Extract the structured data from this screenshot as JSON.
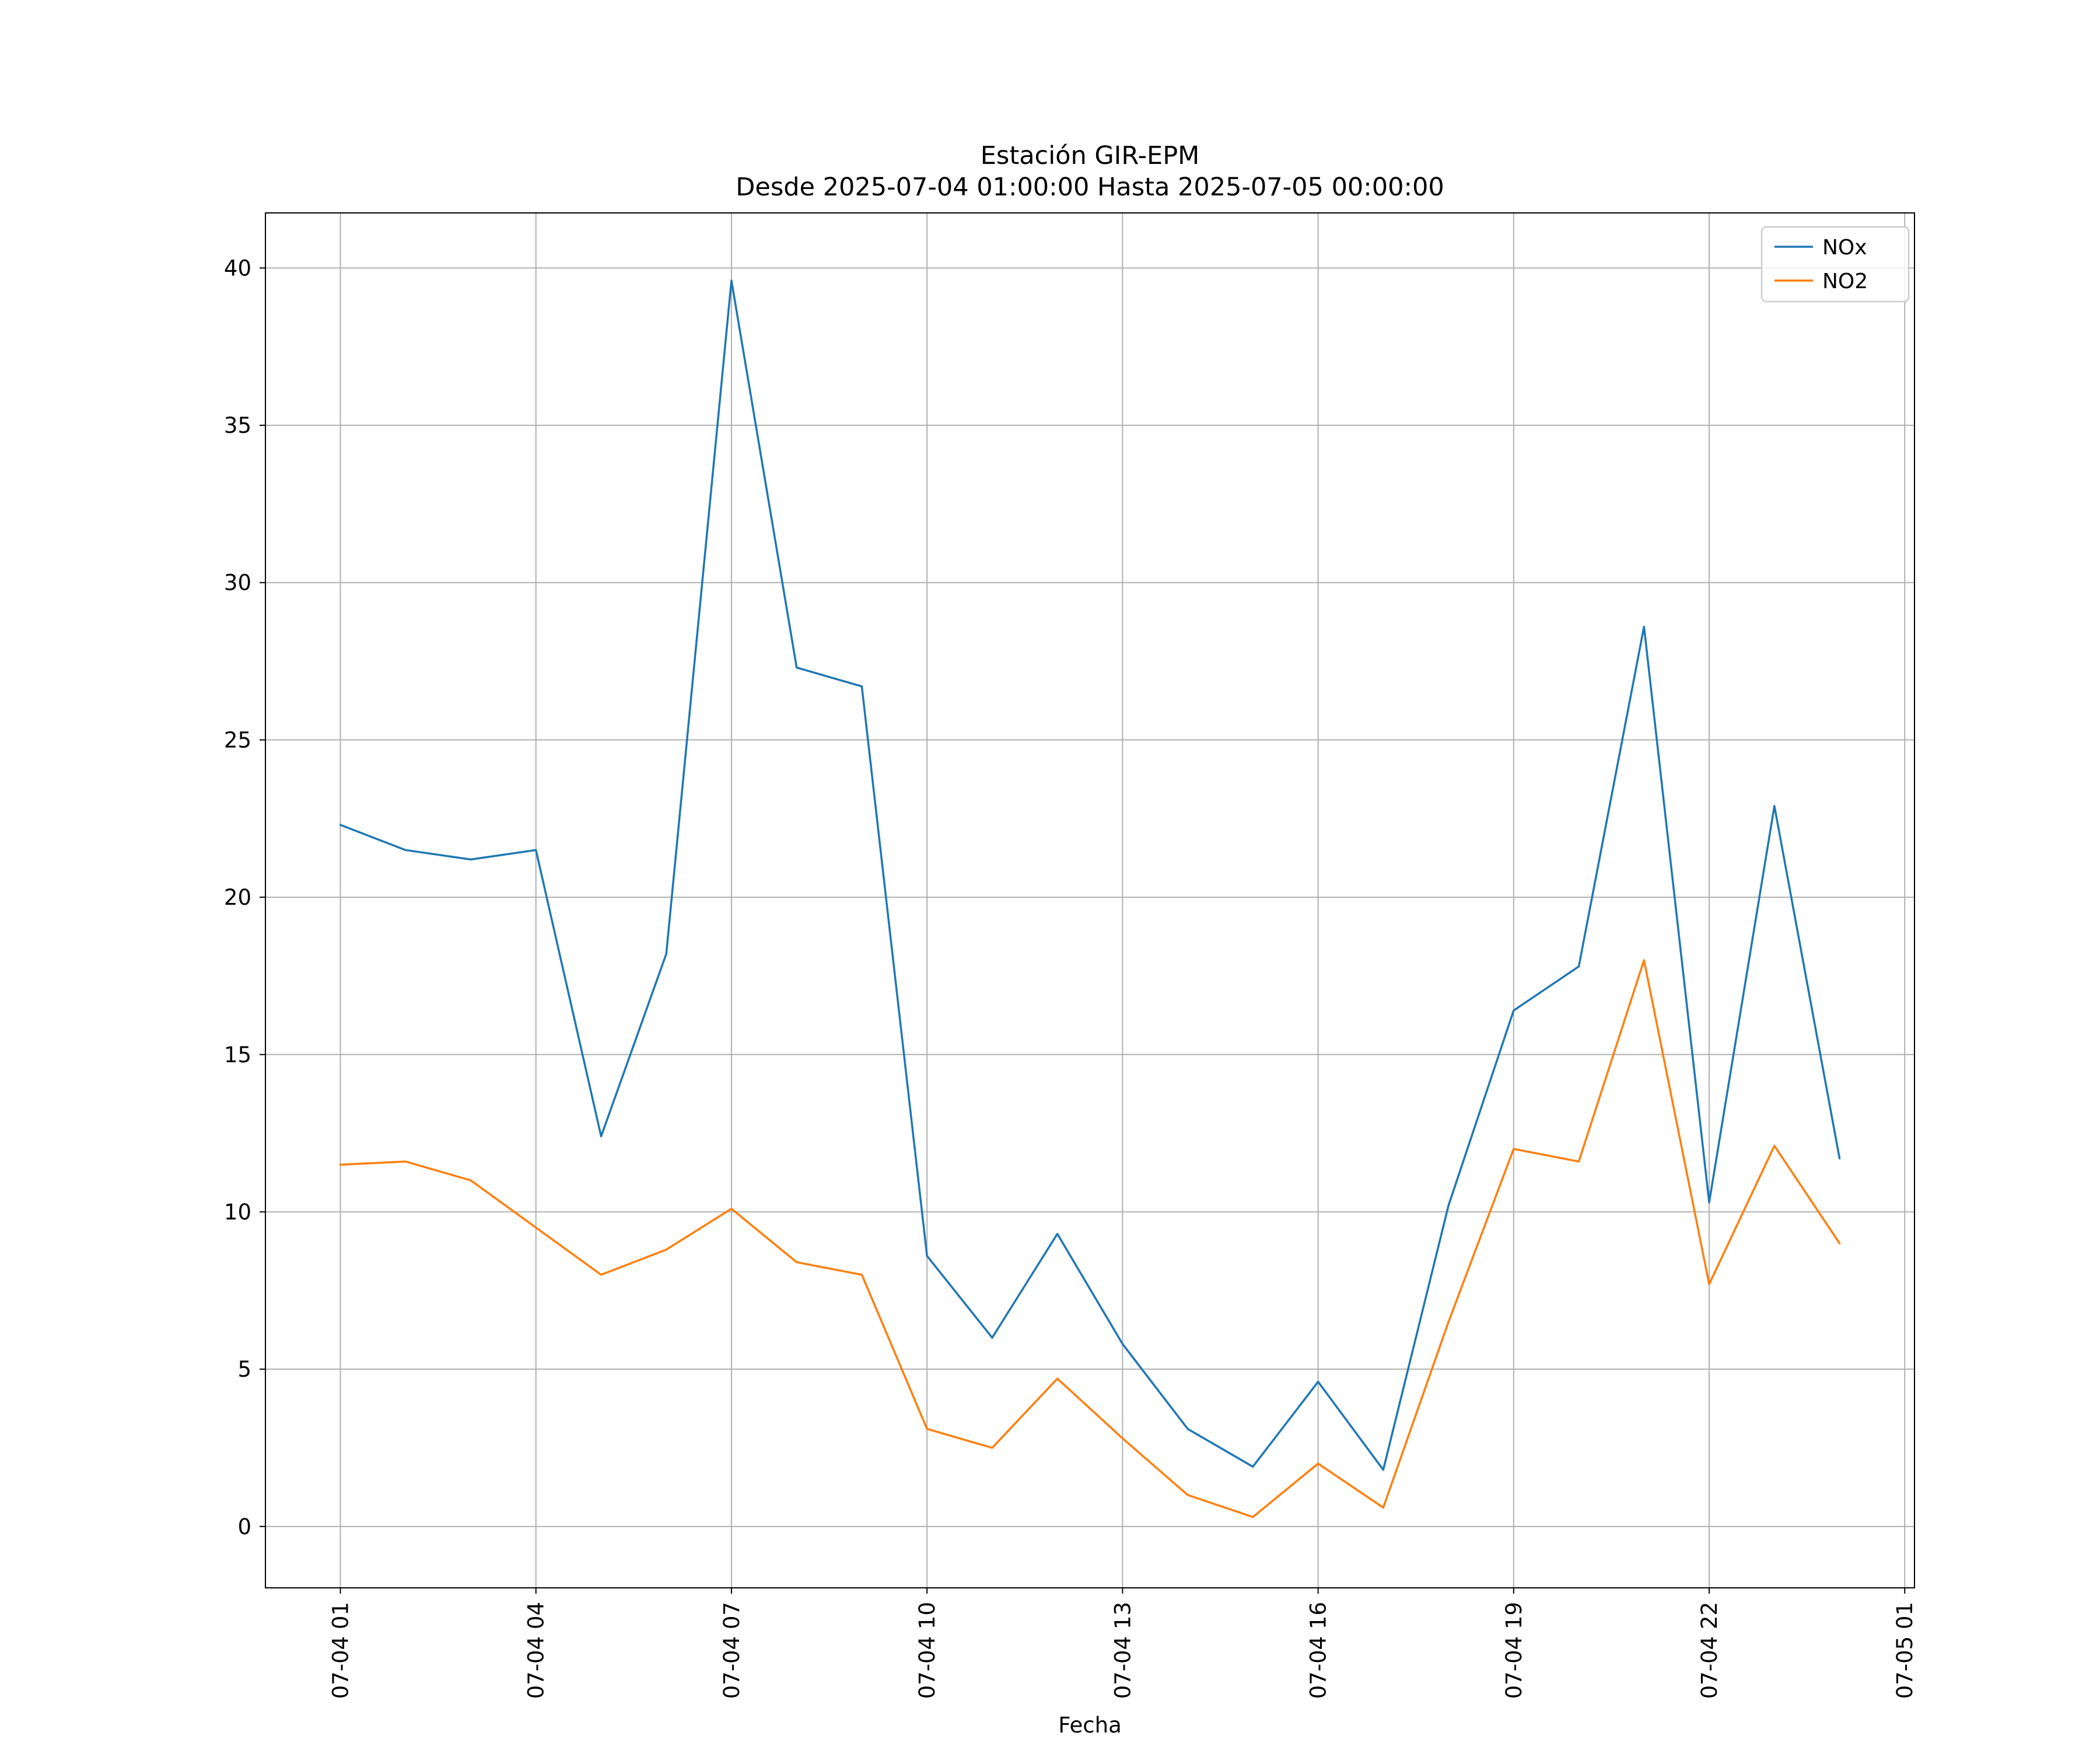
{
  "chart_data": {
    "type": "line",
    "title": "Estación GIR-EPM",
    "subtitle": "Desde 2025-07-04 01:00:00 Hasta 2025-07-05 00:00:00",
    "xlabel": "Fecha",
    "ylabel": "",
    "x": [
      1,
      2,
      3,
      4,
      5,
      6,
      7,
      8,
      9,
      10,
      11,
      12,
      13,
      14,
      15,
      16,
      17,
      18,
      19,
      20,
      21,
      22,
      23,
      24
    ],
    "x_description": "hours of 2025-07-04 01:00 through 2025-07-05 00:00",
    "series": [
      {
        "name": "NOx",
        "color": "#1f77b4",
        "values": [
          22.3,
          21.5,
          21.2,
          21.5,
          12.4,
          18.2,
          39.6,
          27.3,
          26.7,
          8.6,
          6.0,
          9.3,
          5.8,
          3.1,
          1.9,
          4.6,
          1.8,
          10.2,
          16.4,
          17.8,
          28.6,
          10.3,
          22.9,
          11.7
        ]
      },
      {
        "name": "NO2",
        "color": "#ff7f0e",
        "values": [
          11.5,
          11.6,
          11.0,
          9.5,
          8.0,
          8.8,
          10.1,
          8.4,
          8.0,
          3.1,
          2.5,
          4.7,
          2.8,
          1.0,
          0.3,
          2.0,
          0.6,
          6.5,
          12.0,
          11.6,
          18.0,
          7.7,
          12.1,
          9.0
        ]
      }
    ],
    "x_ticks": [
      {
        "x": 1,
        "label": "07-04 01"
      },
      {
        "x": 4,
        "label": "07-04 04"
      },
      {
        "x": 7,
        "label": "07-04 07"
      },
      {
        "x": 10,
        "label": "07-04 10"
      },
      {
        "x": 13,
        "label": "07-04 13"
      },
      {
        "x": 16,
        "label": "07-04 16"
      },
      {
        "x": 19,
        "label": "07-04 19"
      },
      {
        "x": 22,
        "label": "07-04 22"
      },
      {
        "x": 25,
        "label": "07-05 01"
      }
    ],
    "y_ticks": [
      0,
      5,
      10,
      15,
      20,
      25,
      30,
      35,
      40
    ],
    "xlim": [
      -0.15,
      25.15
    ],
    "ylim": [
      -1.95,
      41.75
    ],
    "grid": true,
    "legend_position": "upper right",
    "grid_color": "#b0b0b0",
    "axis_color": "#000000",
    "legend_border_color": "#cccccc"
  }
}
